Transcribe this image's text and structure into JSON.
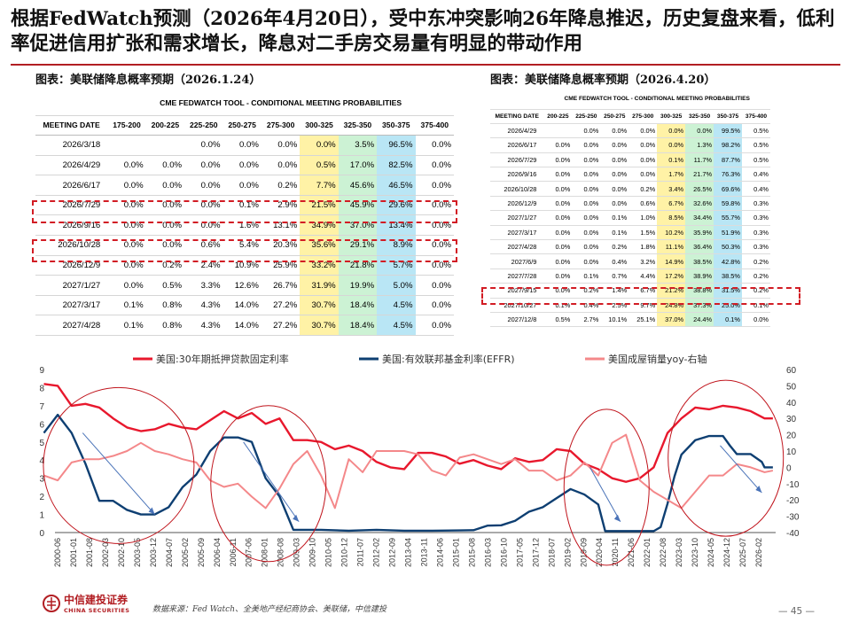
{
  "title": "根据FedWatch预测（2026年4月20日），受中东冲突影响26年降息推迟，历史复盘来看，低利率促进信用扩张和需求增长，降息对二手房交易量有明显的带动作用",
  "left_caption": "图表：美联储降息概率预期（2026.1.24）",
  "right_caption": "图表：美联储降息概率预期（2026.4.20）",
  "table_title": "CME FEDWATCH TOOL - CONDITIONAL MEETING PROBABILITIES",
  "table_left": {
    "headers": [
      "MEETING DATE",
      "175-200",
      "200-225",
      "225-250",
      "250-275",
      "275-300",
      "300-325",
      "325-350",
      "350-375",
      "375-400"
    ],
    "rows": [
      [
        "2026/3/18",
        "",
        "",
        "0.0%",
        "0.0%",
        "0.0%",
        "0.0%",
        "3.5%",
        "96.5%",
        "0.0%"
      ],
      [
        "2026/4/29",
        "0.0%",
        "0.0%",
        "0.0%",
        "0.0%",
        "0.0%",
        "0.5%",
        "17.0%",
        "82.5%",
        "0.0%"
      ],
      [
        "2026/6/17",
        "0.0%",
        "0.0%",
        "0.0%",
        "0.0%",
        "0.2%",
        "7.7%",
        "45.6%",
        "46.5%",
        "0.0%"
      ],
      [
        "2026/7/29",
        "0.0%",
        "0.0%",
        "0.0%",
        "0.1%",
        "2.9%",
        "21.5%",
        "45.9%",
        "29.6%",
        "0.0%"
      ],
      [
        "2026/9/16",
        "0.0%",
        "0.0%",
        "0.0%",
        "1.6%",
        "13.1%",
        "34.9%",
        "37.0%",
        "13.4%",
        "0.0%"
      ],
      [
        "2026/10/28",
        "0.0%",
        "0.0%",
        "0.6%",
        "5.4%",
        "20.3%",
        "35.6%",
        "29.1%",
        "8.9%",
        "0.0%"
      ],
      [
        "2026/12/9",
        "0.0%",
        "0.2%",
        "2.4%",
        "10.9%",
        "25.9%",
        "33.2%",
        "21.8%",
        "5.7%",
        "0.0%"
      ],
      [
        "2027/1/27",
        "0.0%",
        "0.5%",
        "3.3%",
        "12.6%",
        "26.7%",
        "31.9%",
        "19.9%",
        "5.0%",
        "0.0%"
      ],
      [
        "2027/3/17",
        "0.1%",
        "0.8%",
        "4.3%",
        "14.0%",
        "27.2%",
        "30.7%",
        "18.4%",
        "4.5%",
        "0.0%"
      ],
      [
        "2027/4/28",
        "0.1%",
        "0.8%",
        "4.3%",
        "14.0%",
        "27.2%",
        "30.7%",
        "18.4%",
        "4.5%",
        "0.0%"
      ]
    ]
  },
  "table_right": {
    "headers": [
      "MEETING DATE",
      "200-225",
      "225-250",
      "250-275",
      "275-300",
      "300-325",
      "325-350",
      "350-375",
      "375-400"
    ],
    "rows": [
      [
        "2026/4/29",
        "",
        "0.0%",
        "0.0%",
        "0.0%",
        "0.0%",
        "0.0%",
        "99.5%",
        "0.5%"
      ],
      [
        "2026/6/17",
        "0.0%",
        "0.0%",
        "0.0%",
        "0.0%",
        "0.0%",
        "1.3%",
        "98.2%",
        "0.5%"
      ],
      [
        "2026/7/29",
        "0.0%",
        "0.0%",
        "0.0%",
        "0.0%",
        "0.1%",
        "11.7%",
        "87.7%",
        "0.5%"
      ],
      [
        "2026/9/16",
        "0.0%",
        "0.0%",
        "0.0%",
        "0.0%",
        "1.7%",
        "21.7%",
        "76.3%",
        "0.4%"
      ],
      [
        "2026/10/28",
        "0.0%",
        "0.0%",
        "0.0%",
        "0.2%",
        "3.4%",
        "26.5%",
        "69.6%",
        "0.4%"
      ],
      [
        "2026/12/9",
        "0.0%",
        "0.0%",
        "0.0%",
        "0.6%",
        "6.7%",
        "32.6%",
        "59.8%",
        "0.3%"
      ],
      [
        "2027/1/27",
        "0.0%",
        "0.0%",
        "0.1%",
        "1.0%",
        "8.5%",
        "34.4%",
        "55.7%",
        "0.3%"
      ],
      [
        "2027/3/17",
        "0.0%",
        "0.0%",
        "0.1%",
        "1.5%",
        "10.2%",
        "35.9%",
        "51.9%",
        "0.3%"
      ],
      [
        "2027/4/28",
        "0.0%",
        "0.0%",
        "0.2%",
        "1.8%",
        "11.1%",
        "36.4%",
        "50.3%",
        "0.3%"
      ],
      [
        "2027/6/9",
        "0.0%",
        "0.0%",
        "0.4%",
        "3.2%",
        "14.9%",
        "38.5%",
        "42.8%",
        "0.2%"
      ],
      [
        "2027/7/28",
        "0.0%",
        "0.1%",
        "0.7%",
        "4.4%",
        "17.2%",
        "38.9%",
        "38.5%",
        "0.2%"
      ],
      [
        "2027/9/15",
        "0.0%",
        "0.2%",
        "1.4%",
        "6.7%",
        "21.2%",
        "38.8%",
        "31.5%",
        "0.2%"
      ],
      [
        "2027/10/27",
        "0.1%",
        "0.4%",
        "2.5%",
        "9.7%",
        "24.8%",
        "37.3%",
        "25.0%",
        "0.1%"
      ],
      [
        "2027/12/8",
        "0.5%",
        "2.7%",
        "10.1%",
        "25.1%",
        "37.0%",
        "24.4%",
        "0.1%",
        "0.0%"
      ]
    ]
  },
  "chart_data": {
    "type": "line",
    "series": [
      {
        "name": "美国:30年期抵押贷款固定利率",
        "color": "#e8182d",
        "axis": "left",
        "x": [
          2000,
          2000.5,
          2001,
          2001.5,
          2002,
          2002.5,
          2003,
          2003.5,
          2004,
          2004.5,
          2005,
          2005.5,
          2006,
          2006.5,
          2007,
          2007.5,
          2008,
          2008.5,
          2009,
          2009.5,
          2010,
          2010.5,
          2011,
          2011.5,
          2012,
          2012.5,
          2013,
          2013.5,
          2014,
          2014.5,
          2015,
          2015.5,
          2016,
          2016.5,
          2017,
          2017.5,
          2018,
          2018.5,
          2019,
          2019.5,
          2020,
          2020.5,
          2021,
          2021.5,
          2022,
          2022.5,
          2023,
          2023.5,
          2024,
          2024.5,
          2025,
          2025.5,
          2026,
          2026.3
        ],
        "values": [
          8.2,
          8.1,
          7.0,
          7.1,
          6.9,
          6.3,
          5.8,
          5.6,
          5.7,
          6.0,
          5.8,
          5.7,
          6.2,
          6.7,
          6.3,
          6.6,
          6.0,
          6.3,
          5.1,
          5.1,
          5.0,
          4.6,
          4.8,
          4.5,
          3.9,
          3.6,
          3.5,
          4.4,
          4.4,
          4.2,
          3.8,
          4.0,
          3.7,
          3.5,
          4.1,
          3.9,
          4.0,
          4.6,
          4.5,
          3.8,
          3.5,
          3.0,
          2.8,
          3.0,
          3.6,
          5.5,
          6.3,
          6.9,
          6.8,
          7.0,
          6.9,
          6.7,
          6.3,
          6.3
        ]
      },
      {
        "name": "美国:有效联邦基金利率(EFFR)",
        "color": "#0e3f72",
        "axis": "left",
        "x": [
          2000,
          2000.5,
          2001,
          2001.5,
          2002,
          2002.5,
          2003,
          2003.5,
          2004,
          2004.5,
          2005,
          2005.5,
          2006,
          2006.5,
          2007,
          2007.5,
          2008,
          2008.5,
          2009,
          2009.5,
          2010,
          2011,
          2012,
          2013,
          2014,
          2015,
          2015.5,
          2016,
          2016.5,
          2017,
          2017.5,
          2018,
          2018.5,
          2019,
          2019.5,
          2020,
          2020.25,
          2020.5,
          2021,
          2021.5,
          2022,
          2022.25,
          2022.5,
          2022.75,
          2023,
          2023.5,
          2024,
          2024.5,
          2024.75,
          2025,
          2025.5,
          2025.9,
          2026,
          2026.3
        ],
        "values": [
          5.5,
          6.5,
          5.5,
          3.8,
          1.75,
          1.75,
          1.25,
          1.0,
          1.0,
          1.4,
          2.5,
          3.2,
          4.5,
          5.25,
          5.25,
          5.0,
          3.0,
          2.0,
          0.15,
          0.15,
          0.15,
          0.1,
          0.15,
          0.1,
          0.1,
          0.12,
          0.13,
          0.38,
          0.4,
          0.65,
          1.15,
          1.4,
          1.9,
          2.4,
          2.1,
          1.55,
          0.08,
          0.08,
          0.08,
          0.08,
          0.08,
          0.3,
          1.6,
          3.1,
          4.3,
          5.1,
          5.33,
          5.33,
          4.8,
          4.33,
          4.33,
          3.9,
          3.6,
          3.6
        ]
      },
      {
        "name": "美国成屋销量yoy-右轴",
        "color": "#f4888a",
        "axis": "right",
        "x": [
          2000,
          2000.5,
          2001,
          2001.5,
          2002,
          2002.5,
          2003,
          2003.5,
          2004,
          2004.5,
          2005,
          2005.5,
          2006,
          2006.5,
          2007,
          2007.5,
          2008,
          2008.5,
          2009,
          2009.5,
          2010,
          2010.5,
          2011,
          2011.5,
          2012,
          2012.5,
          2013,
          2013.5,
          2014,
          2014.5,
          2015,
          2015.5,
          2016,
          2016.5,
          2017,
          2017.5,
          2018,
          2018.5,
          2019,
          2019.5,
          2020,
          2020.5,
          2021,
          2021.5,
          2022,
          2022.5,
          2023,
          2023.5,
          2024,
          2024.5,
          2025,
          2025.5,
          2026,
          2026.3
        ],
        "values": [
          -5,
          -8,
          3,
          5,
          5,
          7,
          10,
          15,
          10,
          8,
          5,
          3,
          -8,
          -12,
          -10,
          -18,
          -25,
          -13,
          2,
          10,
          -5,
          -25,
          5,
          -3,
          10,
          10,
          10,
          8,
          -2,
          -5,
          6,
          8,
          5,
          2,
          5,
          -2,
          -2,
          -8,
          -5,
          3,
          -5,
          15,
          20,
          -8,
          -15,
          -20,
          -25,
          -15,
          -5,
          -5,
          2,
          0,
          -3,
          -2
        ]
      }
    ],
    "x_ticks": [
      "2000-06",
      "2001-01",
      "2001-08",
      "2002-03",
      "2002-10",
      "2003-05",
      "2003-12",
      "2004-07",
      "2005-02",
      "2005-09",
      "2006-04",
      "2006-11",
      "2007-06",
      "2008-01",
      "2008-08",
      "2009-03",
      "2009-10",
      "2010-05",
      "2010-12",
      "2011-07",
      "2012-02",
      "2012-09",
      "2013-04",
      "2013-11",
      "2014-06",
      "2015-01",
      "2015-08",
      "2016-03",
      "2016-10",
      "2017-05",
      "2017-12",
      "2018-07",
      "2019-02",
      "2019-09",
      "2020-04",
      "2020-11",
      "2021-06",
      "2022-01",
      "2022-08",
      "2023-03",
      "2023-10",
      "2024-05",
      "2024-12",
      "2025-07",
      "2026-02"
    ],
    "ylim_left": [
      0,
      9
    ],
    "ylim_right": [
      -40,
      60
    ],
    "grid": false,
    "legend": "top",
    "annotations": "red ellipses circling 2000-2004, 2007-2010, 2019-2021, 2023-2026 with blue arrows showing rate declines"
  },
  "source": "数据来源：Fed Watch、全美地产经纪商协会、美联储，中信建投",
  "logo_cn": "中信建投证券",
  "logo_en": "CHINA SECURITIES",
  "page": "— 45 —"
}
